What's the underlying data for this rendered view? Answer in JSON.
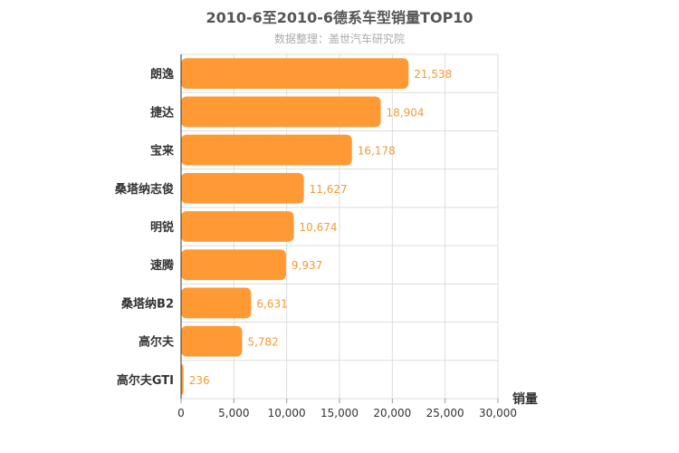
{
  "chart_data": {
    "type": "bar",
    "orientation": "horizontal",
    "title": "2010-6至2010-6德系车型销量TOP10",
    "subtitle": "数据整理：盖世汽车研究院",
    "categories": [
      "朗逸",
      "捷达",
      "宝来",
      "桑塔纳志俊",
      "明锐",
      "速腾",
      "桑塔纳B2",
      "高尔夫",
      "高尔夫GTI"
    ],
    "values": [
      21538,
      18904,
      16178,
      11627,
      10674,
      9937,
      6631,
      5782,
      236
    ],
    "value_labels": [
      "21,538",
      "18,904",
      "16,178",
      "11,627",
      "10,674",
      "9,937",
      "6,631",
      "5,782",
      "236"
    ],
    "xlabel": "销量",
    "xlim": [
      0,
      30000
    ],
    "ticks": [
      0,
      5000,
      10000,
      15000,
      20000,
      25000,
      30000
    ],
    "tick_labels": [
      "0",
      "5,000",
      "10,000",
      "15,000",
      "20,000",
      "25,000",
      "30,000"
    ],
    "grid": true,
    "colors": {
      "bar": "#ff9933",
      "value_label": "#f39a36",
      "grid": "#dddddd"
    }
  }
}
